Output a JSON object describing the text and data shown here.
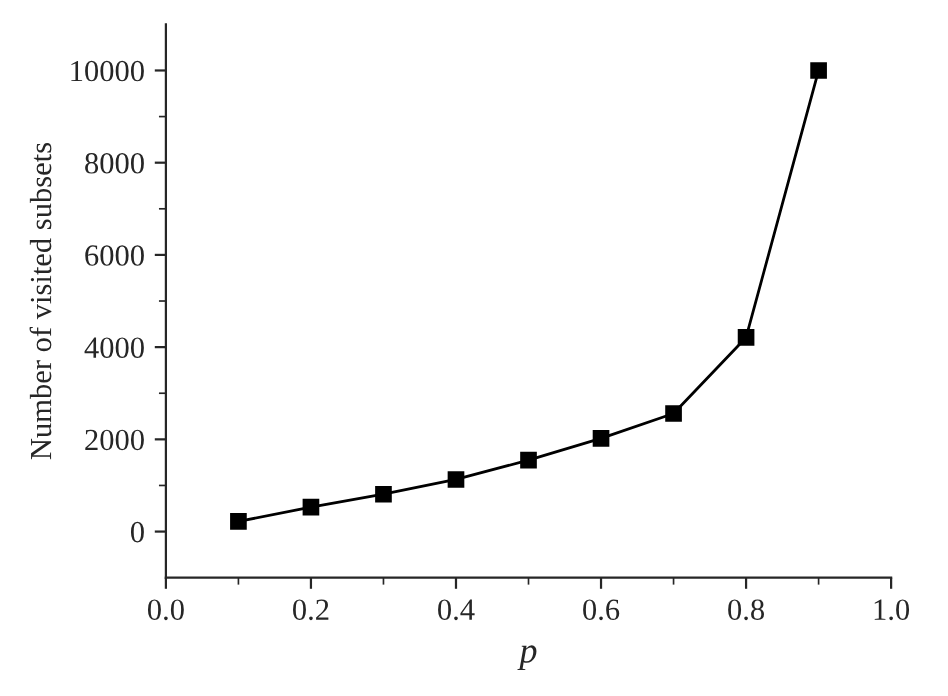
{
  "chart_data": {
    "type": "line",
    "xlabel": "p",
    "ylabel": "Number of visited subsets",
    "x": [
      0.1,
      0.2,
      0.3,
      0.4,
      0.5,
      0.6,
      0.7,
      0.8,
      0.9
    ],
    "series": [
      {
        "color": "#000000",
        "values": [
          220,
          530,
          810,
          1130,
          1550,
          2020,
          2560,
          4210,
          10000
        ]
      }
    ],
    "xlim": [
      0.0,
      1.0
    ],
    "xticks": [
      {
        "value": 0.0,
        "label": "0.0"
      },
      0.2,
      0.4,
      0.6,
      0.8,
      {
        "value": 1.0,
        "label": "1.0"
      }
    ],
    "ylim": [
      -1000,
      11000
    ],
    "yticks": [
      0,
      2000,
      4000,
      6000,
      8000,
      10000
    ],
    "marker": "square",
    "line_style": "solid",
    "grid": false
  }
}
